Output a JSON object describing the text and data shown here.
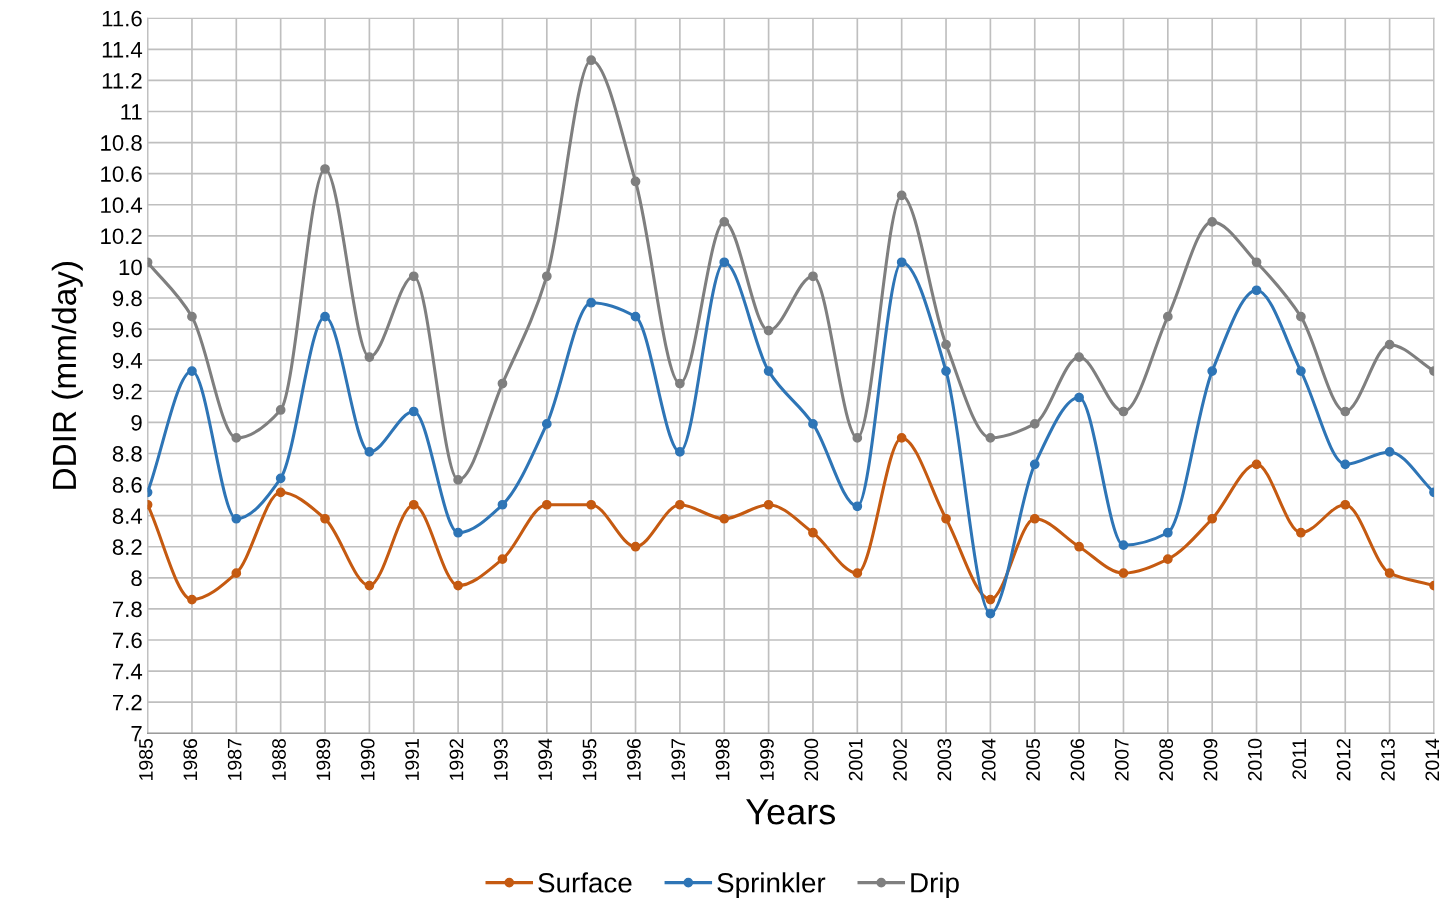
{
  "chart_data": {
    "type": "line",
    "xlabel": "Years",
    "ylabel": "DDIR (mm/day)",
    "categories": [
      "1985",
      "1986",
      "1987",
      "1988",
      "1989",
      "1990",
      "1991",
      "1992",
      "1993",
      "1994",
      "1995",
      "1996",
      "1997",
      "1998",
      "1999",
      "2000",
      "2001",
      "2002",
      "2003",
      "2004",
      "2005",
      "2006",
      "2007",
      "2008",
      "2009",
      "2010",
      "2011",
      "2012",
      "2013",
      "2014"
    ],
    "series": [
      {
        "name": "Surface",
        "color": "#c55a11",
        "values": [
          8.47,
          7.86,
          8.03,
          8.55,
          8.38,
          7.95,
          8.47,
          7.95,
          8.12,
          8.47,
          8.47,
          8.2,
          8.47,
          8.38,
          8.47,
          8.29,
          8.03,
          8.9,
          8.38,
          7.86,
          8.38,
          8.2,
          8.03,
          8.12,
          8.38,
          8.73,
          8.29,
          8.47,
          8.03,
          7.95
        ]
      },
      {
        "name": "Sprinkler",
        "color": "#2e75b6",
        "values": [
          8.55,
          9.33,
          8.38,
          8.64,
          9.68,
          8.81,
          9.07,
          8.29,
          8.47,
          8.99,
          9.77,
          9.68,
          8.81,
          10.03,
          9.33,
          8.99,
          8.46,
          10.03,
          9.33,
          7.77,
          8.73,
          9.16,
          8.21,
          8.29,
          9.33,
          9.85,
          9.33,
          8.73,
          8.81,
          8.55
        ]
      },
      {
        "name": "Drip",
        "color": "#7f7f7f",
        "values": [
          10.03,
          9.68,
          8.9,
          9.08,
          10.63,
          9.42,
          9.94,
          8.63,
          9.25,
          9.94,
          11.33,
          10.55,
          9.25,
          10.29,
          9.59,
          9.94,
          8.9,
          10.46,
          9.5,
          8.9,
          8.99,
          9.42,
          9.07,
          9.68,
          10.29,
          10.03,
          9.68,
          9.07,
          9.5,
          9.33
        ]
      }
    ],
    "ylim": [
      7,
      11.6
    ],
    "yticks": [
      7,
      {
        "value": 7.2,
        "label": "7.2"
      },
      {
        "value": 7.4,
        "label": "7.4"
      },
      {
        "value": 7.6,
        "label": "7.6"
      },
      {
        "value": 7.8,
        "label": "7.8"
      },
      8,
      {
        "value": 8.2,
        "label": "8.2"
      },
      {
        "value": 8.4,
        "label": "8.4"
      },
      {
        "value": 8.6,
        "label": "8.6"
      },
      {
        "value": 8.8,
        "label": "8.8"
      },
      9,
      {
        "value": 9.2,
        "label": "9.2"
      },
      {
        "value": 9.4,
        "label": "9.4"
      },
      {
        "value": 9.6,
        "label": "9.6"
      },
      {
        "value": 9.8,
        "label": "9.8"
      },
      10,
      {
        "value": 10.2,
        "label": "10.2"
      },
      {
        "value": 10.4,
        "label": "10.4"
      },
      {
        "value": 10.6,
        "label": "10.6"
      },
      {
        "value": 10.8,
        "label": "10.8"
      },
      11,
      {
        "value": 11.2,
        "label": "11.2"
      },
      {
        "value": 11.4,
        "label": "11.4"
      },
      {
        "value": 11.6,
        "label": "11.6"
      }
    ],
    "grid": true,
    "legend": "bottom",
    "marker": "circle",
    "line_style": "solid"
  }
}
